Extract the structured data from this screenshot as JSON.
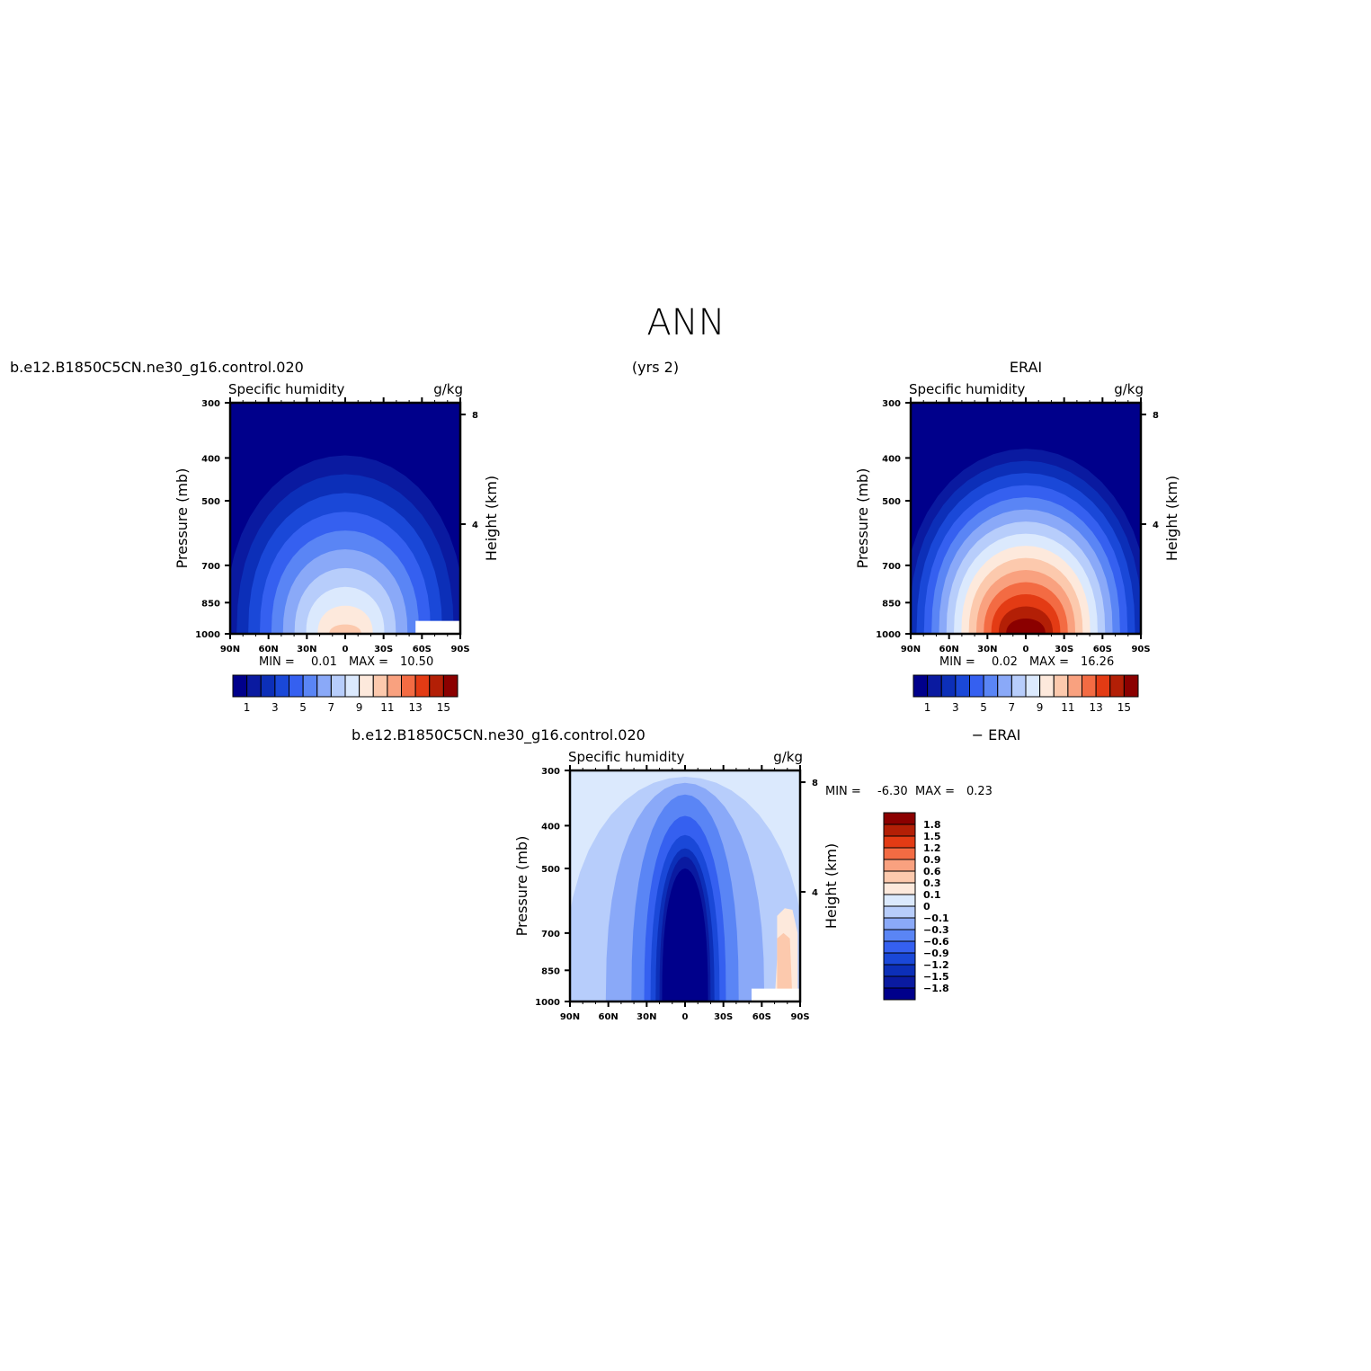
{
  "figure": {
    "title": "ANN",
    "years_label": "(yrs 2)"
  },
  "colors": {
    "abs_levels": [
      "#00008b",
      "#0a1aa0",
      "#0c2fb8",
      "#1a48d8",
      "#3560f0",
      "#5a85f5",
      "#8aa9f8",
      "#b7cdfb",
      "#dbe9fd",
      "#fde9dc",
      "#fcc9ad",
      "#f9a17f",
      "#f36b43",
      "#e33b14",
      "#b31f06",
      "#8b0000"
    ],
    "diff_levels": [
      "#00008b",
      "#0a1aa0",
      "#0c2fb8",
      "#1a48d8",
      "#3560f0",
      "#5a85f5",
      "#8aa9f8",
      "#b7cdfb",
      "#dbe9fd",
      "#fde9dc",
      "#fcc9ad",
      "#f9a17f",
      "#f36b43",
      "#e33b14",
      "#b31f06",
      "#8b0000"
    ]
  },
  "chart_data": [
    {
      "type": "heatmap",
      "panel": "model",
      "title": "b.e12.B1850C5CN.ne30_g16.control.020",
      "left_string": "Specific humidity",
      "right_string": "g/kg",
      "xlabel": "",
      "ylabel": "Pressure (mb)",
      "ylabel_right": "Height (km)",
      "xtick_labels": [
        "90N",
        "60N",
        "30N",
        "0",
        "30S",
        "60S",
        "90S"
      ],
      "x_ticks": [
        90,
        60,
        30,
        0,
        -30,
        -60,
        -90
      ],
      "ytick_labels": [
        "300",
        "400",
        "500",
        "700",
        "850",
        "1000"
      ],
      "y_ticks": [
        300,
        400,
        500,
        700,
        850,
        1000
      ],
      "right_tick_labels": [
        "8",
        "4"
      ],
      "right_ticks_km": [
        8,
        4
      ],
      "ylim": [
        1000,
        300
      ],
      "xlim": [
        90,
        -90
      ],
      "y_scale": "log",
      "min_label": "MIN =",
      "min_value": "0.01",
      "max_label": "MAX =",
      "max_value": "10.50",
      "peak_lat": 0,
      "peak_value": 10.5,
      "colorbar": {
        "orientation": "horizontal",
        "tick_labels": [
          "1",
          "3",
          "5",
          "7",
          "9",
          "11",
          "13",
          "15"
        ]
      }
    },
    {
      "type": "heatmap",
      "panel": "obs",
      "title": "ERAI",
      "left_string": "Specific humidity",
      "right_string": "g/kg",
      "xlabel": "",
      "ylabel": "Pressure (mb)",
      "ylabel_right": "Height (km)",
      "xtick_labels": [
        "90N",
        "60N",
        "30N",
        "0",
        "30S",
        "60S",
        "90S"
      ],
      "x_ticks": [
        90,
        60,
        30,
        0,
        -30,
        -60,
        -90
      ],
      "ytick_labels": [
        "300",
        "400",
        "500",
        "700",
        "850",
        "1000"
      ],
      "y_ticks": [
        300,
        400,
        500,
        700,
        850,
        1000
      ],
      "right_tick_labels": [
        "8",
        "4"
      ],
      "right_ticks_km": [
        8,
        4
      ],
      "ylim": [
        1000,
        300
      ],
      "xlim": [
        90,
        -90
      ],
      "y_scale": "log",
      "min_label": "MIN =",
      "min_value": "0.02",
      "max_label": "MAX =",
      "max_value": "16.26",
      "peak_lat": 0,
      "peak_value": 16.26,
      "colorbar": {
        "orientation": "horizontal",
        "tick_labels": [
          "1",
          "3",
          "5",
          "7",
          "9",
          "11",
          "13",
          "15"
        ]
      }
    },
    {
      "type": "heatmap",
      "panel": "difference",
      "title": "b.e12.B1850C5CN.ne30_g16.control.020",
      "title_right": "− ERAI",
      "left_string": "Specific humidity",
      "right_string": "g/kg",
      "xlabel": "",
      "ylabel": "Pressure (mb)",
      "ylabel_right": "Height (km)",
      "xtick_labels": [
        "90N",
        "60N",
        "30N",
        "0",
        "30S",
        "60S",
        "90S"
      ],
      "x_ticks": [
        90,
        60,
        30,
        0,
        -30,
        -60,
        -90
      ],
      "ytick_labels": [
        "300",
        "400",
        "500",
        "700",
        "850",
        "1000"
      ],
      "y_ticks": [
        300,
        400,
        500,
        700,
        850,
        1000
      ],
      "right_tick_labels": [
        "8",
        "4"
      ],
      "right_ticks_km": [
        8,
        4
      ],
      "ylim": [
        1000,
        300
      ],
      "xlim": [
        90,
        -90
      ],
      "y_scale": "log",
      "min_label": "MIN =",
      "min_value": "-6.30",
      "max_label": "MAX =",
      "max_value": "0.23",
      "colorbar": {
        "orientation": "vertical",
        "tick_labels": [
          "1.8",
          "1.5",
          "1.2",
          "0.9",
          "0.6",
          "0.3",
          "0.1",
          "0",
          "−0.1",
          "−0.3",
          "−0.6",
          "−0.9",
          "−1.2",
          "−1.5",
          "−1.8"
        ]
      }
    }
  ]
}
